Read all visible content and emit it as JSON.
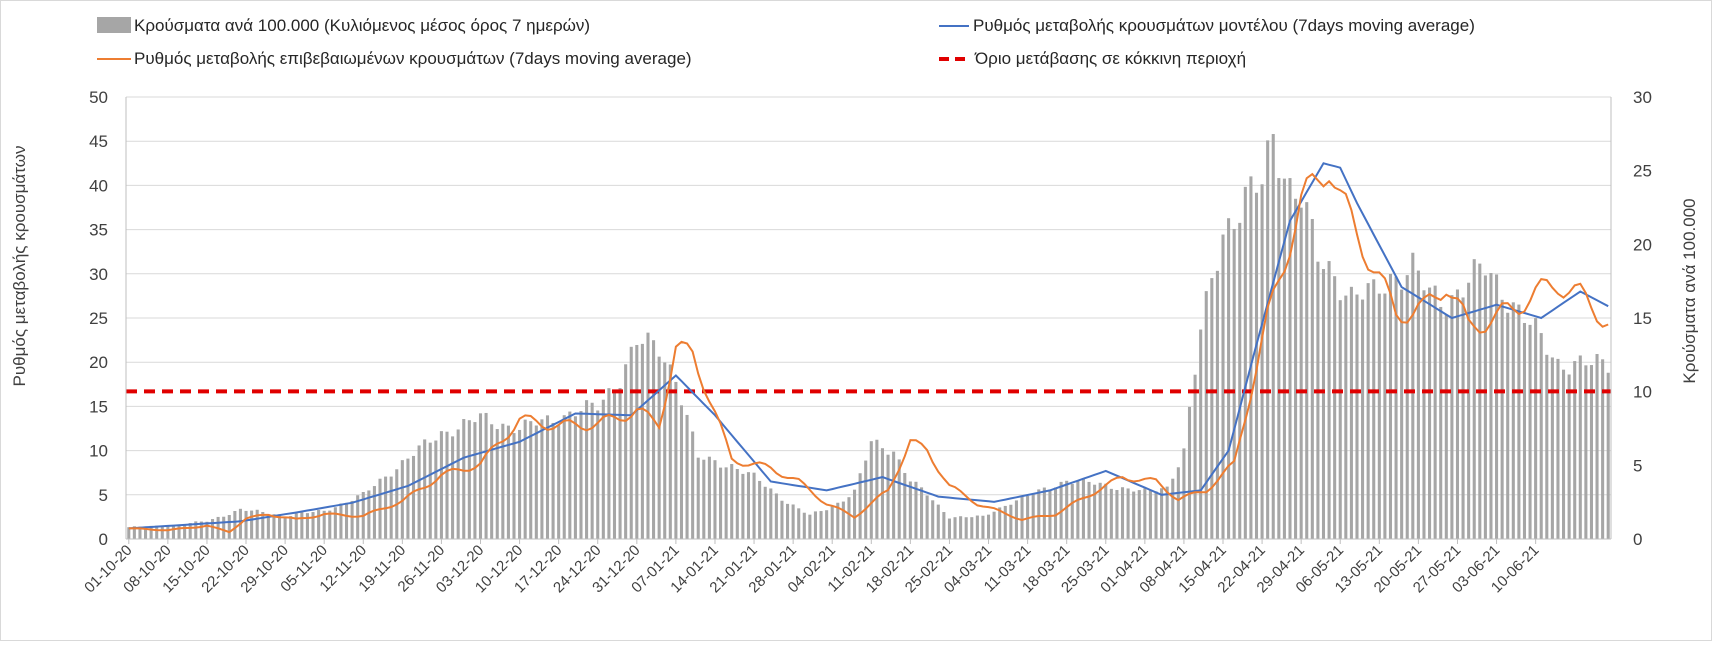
{
  "chart_data": {
    "type": "bar+line",
    "legend": {
      "position": "top",
      "entries": [
        {
          "label": "Κρούσματα ανά 100.000 (Κυλιόμενος μέσος όρος 7 ημερών)",
          "kind": "bar",
          "color": "#a6a6a6"
        },
        {
          "label": "Ρυθμός μεταβολής κρουσμάτων μοντέλου (7days moving average)",
          "kind": "line",
          "color": "#4472c4"
        },
        {
          "label": "Ρυθμός μεταβολής επιβεβαιωμένων κρουσμάτων (7days moving average)",
          "kind": "line",
          "color": "#ed7d31"
        },
        {
          "label": "Όριο μετάβασης σε κόκκινη περιοχή",
          "kind": "dashed",
          "color": "#e00000"
        }
      ]
    },
    "ylabel_left": "Ρυθμός μεταβολής κρουσμάτων",
    "ylabel_right": "Κρούσματα ανά 100.000",
    "ylim_left": [
      0,
      50
    ],
    "ylim_right": [
      0,
      30
    ],
    "yticks_left": [
      "0",
      "5",
      "10",
      "15",
      "20",
      "25",
      "30",
      "35",
      "40",
      "45",
      "50"
    ],
    "yticks_right": [
      "0",
      "5",
      "10",
      "15",
      "20",
      "25",
      "30"
    ],
    "grid": true,
    "n_days": 266,
    "xtick_labels": [
      "01-10-20",
      "08-10-20",
      "15-10-20",
      "22-10-20",
      "29-10-20",
      "05-11-20",
      "12-11-20",
      "19-11-20",
      "26-11-20",
      "03-12-20",
      "10-12-20",
      "17-12-20",
      "24-12-20",
      "31-12-20",
      "07-01-21",
      "14-01-21",
      "21-01-21",
      "28-01-21",
      "04-02-21",
      "11-02-21",
      "18-02-21",
      "25-02-21",
      "04-03-21",
      "11-03-21",
      "18-03-21",
      "25-03-21",
      "01-04-21",
      "08-04-21",
      "15-04-21",
      "22-04-21",
      "29-04-21",
      "06-05-21",
      "13-05-21",
      "20-05-21",
      "27-05-21",
      "03-06-21",
      "10-06-21"
    ],
    "threshold_left": 16.7,
    "series": [
      {
        "name": "Κρούσματα ανά 100.000 (Κυλιόμενος μέσος όρος 7 ημερών)",
        "axis": "right",
        "kind": "bar",
        "anchors": [
          [
            0,
            0.8
          ],
          [
            7,
            0.9
          ],
          [
            14,
            1.2
          ],
          [
            20,
            2.0
          ],
          [
            28,
            1.6
          ],
          [
            35,
            1.9
          ],
          [
            42,
            3.0
          ],
          [
            49,
            5.2
          ],
          [
            56,
            7.2
          ],
          [
            63,
            8.2
          ],
          [
            70,
            7.5
          ],
          [
            77,
            8.3
          ],
          [
            84,
            9.0
          ],
          [
            88,
            11.0
          ],
          [
            91,
            13.3
          ],
          [
            95,
            13.0
          ],
          [
            98,
            11.0
          ],
          [
            102,
            5.5
          ],
          [
            108,
            5.0
          ],
          [
            112,
            4.2
          ],
          [
            118,
            2.5
          ],
          [
            122,
            1.6
          ],
          [
            126,
            2.2
          ],
          [
            130,
            3.2
          ],
          [
            133,
            6.5
          ],
          [
            137,
            6.0
          ],
          [
            140,
            4.0
          ],
          [
            143,
            3.0
          ],
          [
            147,
            1.5
          ],
          [
            153,
            1.5
          ],
          [
            158,
            2.5
          ],
          [
            161,
            2.9
          ],
          [
            165,
            3.5
          ],
          [
            168,
            4.0
          ],
          [
            172,
            3.8
          ],
          [
            176,
            3.6
          ],
          [
            182,
            3.2
          ],
          [
            186,
            3.5
          ],
          [
            189,
            6.0
          ],
          [
            192,
            14.0
          ],
          [
            196,
            21.0
          ],
          [
            200,
            23.0
          ],
          [
            203,
            24.0
          ],
          [
            205,
            27.5
          ],
          [
            208,
            24.0
          ],
          [
            210,
            23.2
          ],
          [
            213,
            19.0
          ],
          [
            216,
            18.0
          ],
          [
            219,
            16.5
          ],
          [
            223,
            16.6
          ],
          [
            226,
            17.8
          ],
          [
            230,
            18.4
          ],
          [
            233,
            16.5
          ],
          [
            236,
            16.2
          ],
          [
            240,
            17.5
          ],
          [
            243,
            18.3
          ],
          [
            247,
            16.5
          ],
          [
            252,
            14.0
          ],
          [
            256,
            12.0
          ],
          [
            262,
            11.8
          ],
          [
            266,
            12.0
          ]
        ]
      },
      {
        "name": "Ρυθμός μεταβολής κρουσμάτων μοντέλου (7days moving average)",
        "axis": "left",
        "kind": "line",
        "anchors": [
          [
            0,
            1.2
          ],
          [
            20,
            2.0
          ],
          [
            30,
            3.0
          ],
          [
            40,
            4.1
          ],
          [
            50,
            6.0
          ],
          [
            60,
            9.2
          ],
          [
            70,
            11.0
          ],
          [
            80,
            14.2
          ],
          [
            90,
            14.0
          ],
          [
            98,
            18.5
          ],
          [
            105,
            14.0
          ],
          [
            115,
            6.5
          ],
          [
            125,
            5.5
          ],
          [
            135,
            7.0
          ],
          [
            145,
            4.8
          ],
          [
            155,
            4.2
          ],
          [
            165,
            5.5
          ],
          [
            175,
            7.7
          ],
          [
            185,
            5.0
          ],
          [
            192,
            5.5
          ],
          [
            197,
            10.0
          ],
          [
            202,
            22.0
          ],
          [
            208,
            36.0
          ],
          [
            214,
            42.5
          ],
          [
            217,
            42.0
          ],
          [
            220,
            38.0
          ],
          [
            228,
            28.5
          ],
          [
            237,
            25.0
          ],
          [
            245,
            26.5
          ],
          [
            253,
            25.0
          ],
          [
            260,
            28.0
          ],
          [
            266,
            26.0
          ]
        ]
      },
      {
        "name": "Ρυθμός μεταβολής επιβεβαιωμένων κρουσμάτων (7days moving average)",
        "axis": "left",
        "kind": "line",
        "anchors": [
          [
            0,
            1.2
          ],
          [
            7,
            1.0
          ],
          [
            14,
            1.5
          ],
          [
            18,
            0.8
          ],
          [
            21,
            2.3
          ],
          [
            25,
            2.8
          ],
          [
            30,
            2.2
          ],
          [
            35,
            2.8
          ],
          [
            42,
            2.6
          ],
          [
            49,
            4.3
          ],
          [
            56,
            7.2
          ],
          [
            63,
            8.5
          ],
          [
            70,
            13.5
          ],
          [
            77,
            12.8
          ],
          [
            84,
            13.0
          ],
          [
            91,
            14.5
          ],
          [
            95,
            13.0
          ],
          [
            98,
            21.5
          ],
          [
            101,
            21.0
          ],
          [
            104,
            16.0
          ],
          [
            108,
            9.0
          ],
          [
            115,
            8.0
          ],
          [
            120,
            6.5
          ],
          [
            125,
            4.0
          ],
          [
            130,
            2.5
          ],
          [
            136,
            5.5
          ],
          [
            140,
            11.0
          ],
          [
            143,
            10.0
          ],
          [
            147,
            6.0
          ],
          [
            152,
            4.0
          ],
          [
            160,
            2.2
          ],
          [
            166,
            2.8
          ],
          [
            172,
            5.0
          ],
          [
            178,
            7.0
          ],
          [
            184,
            6.5
          ],
          [
            188,
            4.5
          ],
          [
            193,
            5.5
          ],
          [
            198,
            8.5
          ],
          [
            204,
            25.0
          ],
          [
            210,
            38.0
          ],
          [
            215,
            42.5
          ],
          [
            217,
            38.5
          ],
          [
            222,
            32.0
          ],
          [
            227,
            25.5
          ],
          [
            232,
            26.0
          ],
          [
            236,
            29.0
          ],
          [
            240,
            24.0
          ],
          [
            245,
            25.0
          ],
          [
            250,
            27.0
          ],
          [
            256,
            29.0
          ],
          [
            260,
            27.5
          ],
          [
            266,
            24.0
          ]
        ]
      }
    ]
  }
}
